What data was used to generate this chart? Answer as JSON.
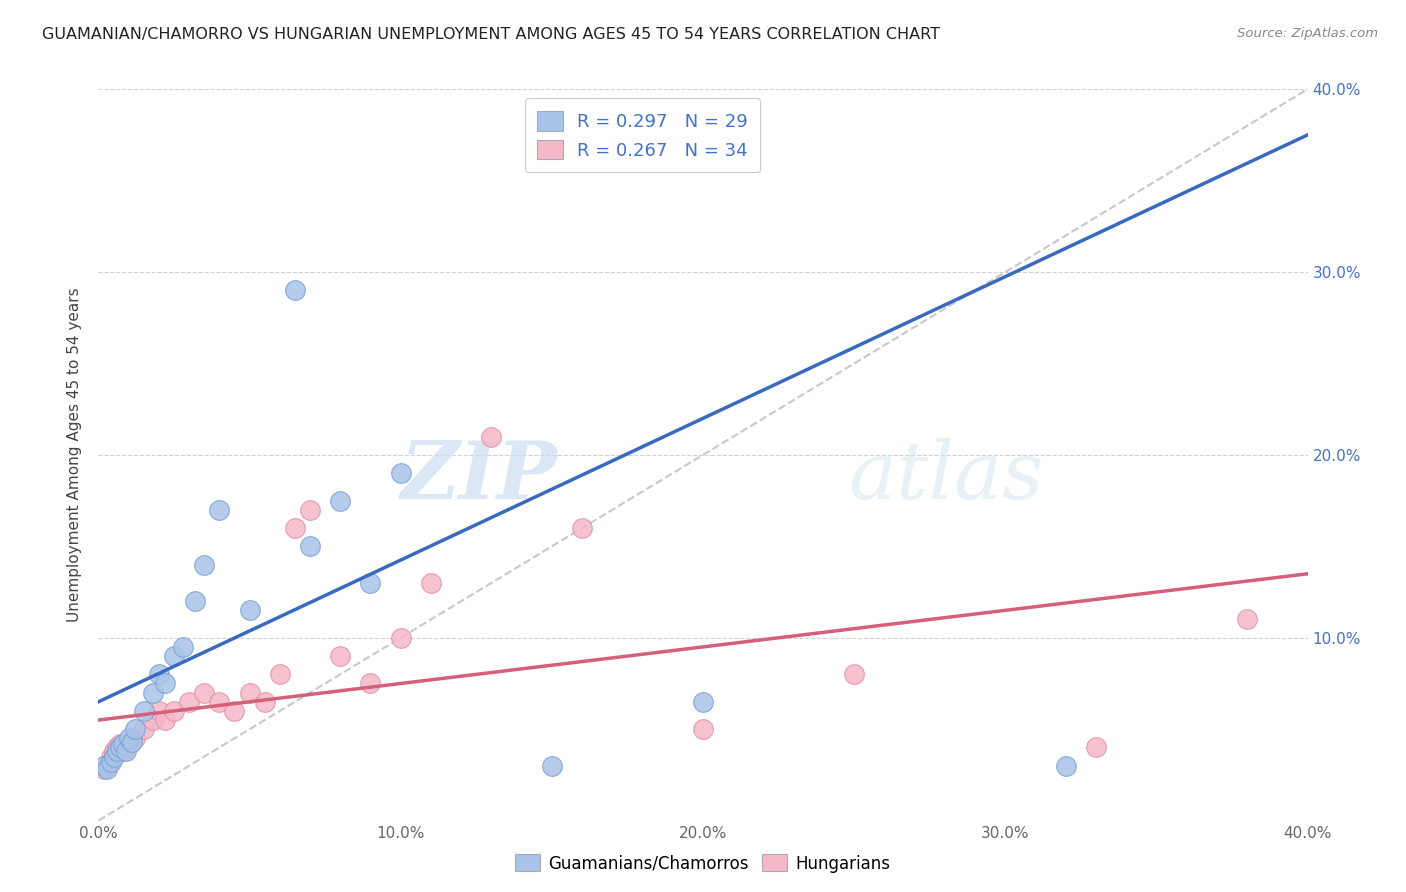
{
  "title": "GUAMANIAN/CHAMORRO VS HUNGARIAN UNEMPLOYMENT AMONG AGES 45 TO 54 YEARS CORRELATION CHART",
  "source": "Source: ZipAtlas.com",
  "ylabel": "Unemployment Among Ages 45 to 54 years",
  "xlim": [
    0.0,
    0.4
  ],
  "ylim": [
    0.0,
    0.4
  ],
  "xtick_labels": [
    "0.0%",
    "10.0%",
    "20.0%",
    "30.0%",
    "40.0%"
  ],
  "xtick_vals": [
    0.0,
    0.1,
    0.2,
    0.3,
    0.4
  ],
  "ytick_labels_right": [
    "",
    "10.0%",
    "20.0%",
    "30.0%",
    "40.0%"
  ],
  "ytick_vals": [
    0.0,
    0.1,
    0.2,
    0.3,
    0.4
  ],
  "legend_labels": [
    "Guamanians/Chamorros",
    "Hungarians"
  ],
  "blue_color": "#a8c4e8",
  "pink_color": "#f5b8c8",
  "blue_line_color": "#3a6abf",
  "pink_line_color": "#d4607a",
  "dashed_line_color": "#bbbbbb",
  "r_blue": 0.297,
  "n_blue": 29,
  "r_pink": 0.267,
  "n_pink": 34,
  "watermark_zip": "ZIP",
  "watermark_atlas": "atlas",
  "blue_scatter_x": [
    0.002,
    0.003,
    0.004,
    0.005,
    0.006,
    0.007,
    0.008,
    0.009,
    0.01,
    0.011,
    0.012,
    0.015,
    0.018,
    0.02,
    0.022,
    0.025,
    0.028,
    0.032,
    0.035,
    0.04,
    0.05,
    0.065,
    0.07,
    0.08,
    0.09,
    0.1,
    0.15,
    0.2,
    0.32
  ],
  "blue_scatter_y": [
    0.03,
    0.028,
    0.032,
    0.035,
    0.038,
    0.04,
    0.042,
    0.038,
    0.045,
    0.043,
    0.05,
    0.06,
    0.07,
    0.08,
    0.075,
    0.09,
    0.095,
    0.12,
    0.14,
    0.17,
    0.115,
    0.29,
    0.15,
    0.175,
    0.13,
    0.19,
    0.03,
    0.065,
    0.03
  ],
  "pink_scatter_x": [
    0.002,
    0.003,
    0.004,
    0.005,
    0.006,
    0.007,
    0.008,
    0.009,
    0.01,
    0.012,
    0.015,
    0.018,
    0.02,
    0.022,
    0.025,
    0.03,
    0.035,
    0.04,
    0.045,
    0.05,
    0.055,
    0.06,
    0.065,
    0.07,
    0.08,
    0.09,
    0.1,
    0.11,
    0.13,
    0.16,
    0.2,
    0.25,
    0.33,
    0.38
  ],
  "pink_scatter_y": [
    0.028,
    0.03,
    0.035,
    0.038,
    0.04,
    0.042,
    0.038,
    0.04,
    0.042,
    0.045,
    0.05,
    0.055,
    0.06,
    0.055,
    0.06,
    0.065,
    0.07,
    0.065,
    0.06,
    0.07,
    0.065,
    0.08,
    0.16,
    0.17,
    0.09,
    0.075,
    0.1,
    0.13,
    0.21,
    0.16,
    0.05,
    0.08,
    0.04,
    0.11
  ]
}
